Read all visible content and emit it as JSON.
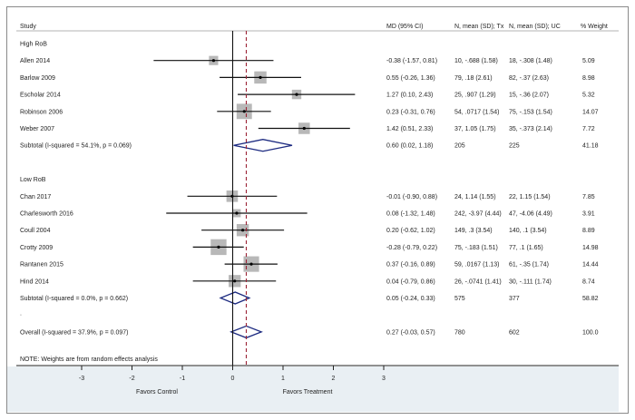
{
  "chart_data": {
    "type": "forest",
    "title": "",
    "columns": {
      "study": "Study",
      "md": "MD (95% CI)",
      "tx": "N, mean (SD); Tx",
      "uc": "N, mean (SD); UC",
      "weight": "% Weight"
    },
    "groups": [
      {
        "label": "High RoB",
        "studies": [
          {
            "name": "Allen 2014",
            "md": -0.38,
            "lo": -1.57,
            "hi": 0.81,
            "md_text": "-0.38 (-1.57, 0.81)",
            "tx": "10, -.688 (1.58)",
            "uc": "18, -.308 (1.48)",
            "weight": 5.09,
            "weight_text": "5.09"
          },
          {
            "name": "Barlow 2009",
            "md": 0.55,
            "lo": -0.26,
            "hi": 1.36,
            "md_text": "0.55 (-0.26, 1.36)",
            "tx": "79, .18 (2.61)",
            "uc": "82, -.37 (2.63)",
            "weight": 8.98,
            "weight_text": "8.98"
          },
          {
            "name": "Escholar 2014",
            "md": 1.27,
            "lo": 0.1,
            "hi": 2.43,
            "md_text": "1.27 (0.10, 2.43)",
            "tx": "25, .907 (1.29)",
            "uc": "15, -.36 (2.07)",
            "weight": 5.32,
            "weight_text": "5.32"
          },
          {
            "name": "Robinson 2006",
            "md": 0.23,
            "lo": -0.31,
            "hi": 0.76,
            "md_text": "0.23 (-0.31, 0.76)",
            "tx": "54, .0717 (1.54)",
            "uc": "75, -.153 (1.54)",
            "weight": 14.07,
            "weight_text": "14.07"
          },
          {
            "name": "Weber 2007",
            "md": 1.42,
            "lo": 0.51,
            "hi": 2.33,
            "md_text": "1.42 (0.51, 2.33)",
            "tx": "37, 1.05 (1.75)",
            "uc": "35, -.373 (2.14)",
            "weight": 7.72,
            "weight_text": "7.72"
          }
        ],
        "subtotal": {
          "label": "Subtotal  (I-squared = 54.1%, p = 0.069)",
          "md": 0.6,
          "lo": 0.02,
          "hi": 1.18,
          "md_text": "0.60 (0.02, 1.18)",
          "tx": "205",
          "uc": "225",
          "weight_text": "41.18"
        }
      },
      {
        "label": "Low RoB",
        "studies": [
          {
            "name": "Chan 2017",
            "md": -0.01,
            "lo": -0.9,
            "hi": 0.88,
            "md_text": "-0.01 (-0.90, 0.88)",
            "tx": "24, 1.14 (1.55)",
            "uc": "22, 1.15 (1.54)",
            "weight": 7.85,
            "weight_text": "7.85"
          },
          {
            "name": "Charlesworth 2016",
            "md": 0.08,
            "lo": -1.32,
            "hi": 1.48,
            "md_text": "0.08 (-1.32, 1.48)",
            "tx": "242, -3.97 (4.44)",
            "uc": "47, -4.06 (4.49)",
            "weight": 3.91,
            "weight_text": "3.91"
          },
          {
            "name": "Coull 2004",
            "md": 0.2,
            "lo": -0.62,
            "hi": 1.02,
            "md_text": "0.20 (-0.62, 1.02)",
            "tx": "149, .3 (3.54)",
            "uc": "140, .1 (3.54)",
            "weight": 8.89,
            "weight_text": "8.89"
          },
          {
            "name": "Crotty 2009",
            "md": -0.28,
            "lo": -0.79,
            "hi": 0.22,
            "md_text": "-0.28 (-0.79, 0.22)",
            "tx": "75, -.183 (1.51)",
            "uc": "77, .1 (1.65)",
            "weight": 14.98,
            "weight_text": "14.98"
          },
          {
            "name": "Rantanen 2015",
            "md": 0.37,
            "lo": -0.16,
            "hi": 0.89,
            "md_text": "0.37 (-0.16, 0.89)",
            "tx": "59, .0167 (1.13)",
            "uc": "61, -.35 (1.74)",
            "weight": 14.44,
            "weight_text": "14.44"
          },
          {
            "name": "Hind 2014",
            "md": 0.04,
            "lo": -0.79,
            "hi": 0.86,
            "md_text": "0.04 (-0.79, 0.86)",
            "tx": "26, -.0741 (1.41)",
            "uc": "30, -.111 (1.74)",
            "weight": 8.74,
            "weight_text": "8.74"
          }
        ],
        "subtotal": {
          "label": "Subtotal  (I-squared = 0.0%, p = 0.662)",
          "md": 0.05,
          "lo": -0.24,
          "hi": 0.33,
          "md_text": "0.05 (-0.24, 0.33)",
          "tx": "575",
          "uc": "377",
          "weight_text": "58.82"
        }
      }
    ],
    "separator": ".",
    "overall": {
      "label": "Overall  (I-squared = 37.9%, p = 0.097)",
      "md": 0.27,
      "lo": -0.03,
      "hi": 0.57,
      "md_text": "0.27 (-0.03, 0.57)",
      "tx": "780",
      "uc": "602",
      "weight_text": "100.0"
    },
    "note": "NOTE: Weights are from random effects analysis",
    "xaxis": {
      "ticks": [
        -3,
        -2,
        -1,
        0,
        1,
        2,
        3
      ],
      "tick_labels": [
        "-3",
        "-2",
        "-1",
        "0",
        "1",
        "2",
        "3"
      ],
      "range": [
        -3,
        3
      ],
      "left_label": "Favors Control",
      "right_label": "Favors Treatment"
    },
    "null_line": 0,
    "overall_line": 0.27,
    "colors": {
      "diamond": "#1c2a80",
      "overall_line": "#9b2335",
      "square": "#b8b8b8",
      "axis_band": "#e9eff3"
    }
  }
}
